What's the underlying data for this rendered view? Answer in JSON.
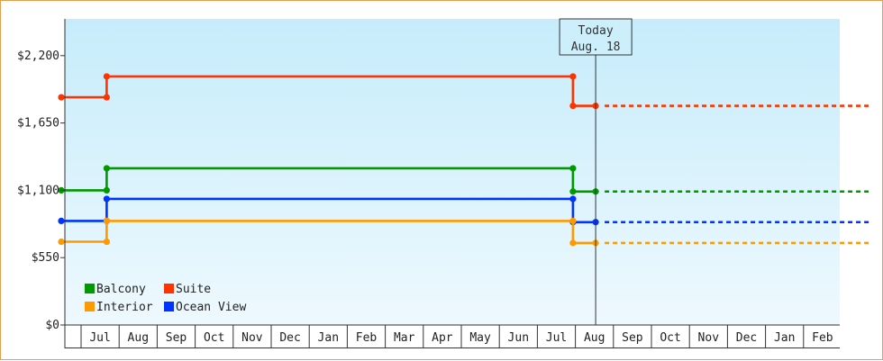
{
  "chart_data": {
    "type": "line",
    "step": true,
    "grid": false,
    "legend_placement": "bottom-left",
    "ylim": [
      0,
      2500
    ],
    "y_ticks": [
      {
        "value": 0,
        "label": "$0"
      },
      {
        "value": 550,
        "label": "$550"
      },
      {
        "value": 1100,
        "label": "$1,100"
      },
      {
        "value": 1650,
        "label": "$1,650"
      },
      {
        "value": 2200,
        "label": "$2,200"
      }
    ],
    "x_labels": [
      "Jul",
      "Aug",
      "Sep",
      "Oct",
      "Nov",
      "Dec",
      "Jan",
      "Feb",
      "Mar",
      "Apr",
      "May",
      "Jun",
      "Jul",
      "Aug",
      "Sep",
      "Oct",
      "Nov",
      "Dec",
      "Jan",
      "Feb"
    ],
    "today": {
      "line1": "Today",
      "line2": "Aug. 18",
      "x": 13.18
    },
    "forecast_end_x": 20.0,
    "series": [
      {
        "name": "Suite",
        "color": "#ff3300",
        "points": [
          [
            0,
            1860
          ],
          [
            1.12,
            1860
          ],
          [
            1.12,
            2030
          ],
          [
            12.62,
            2030
          ],
          [
            12.62,
            1790
          ],
          [
            13.18,
            1790
          ]
        ],
        "forecast": 1790
      },
      {
        "name": "Balcony",
        "color": "#009900",
        "points": [
          [
            0,
            1100
          ],
          [
            1.12,
            1100
          ],
          [
            1.12,
            1280
          ],
          [
            12.62,
            1280
          ],
          [
            12.62,
            1090
          ],
          [
            13.18,
            1090
          ]
        ],
        "forecast": 1090
      },
      {
        "name": "Ocean View",
        "color": "#0033ff",
        "points": [
          [
            0,
            850
          ],
          [
            1.12,
            850
          ],
          [
            1.12,
            1030
          ],
          [
            12.62,
            1030
          ],
          [
            12.62,
            840
          ],
          [
            13.18,
            840
          ]
        ],
        "forecast": 840
      },
      {
        "name": "Interior",
        "color": "#ff9900",
        "points": [
          [
            0,
            680
          ],
          [
            1.12,
            680
          ],
          [
            1.12,
            850
          ],
          [
            12.62,
            850
          ],
          [
            12.62,
            670
          ],
          [
            13.18,
            670
          ]
        ],
        "forecast": 670
      }
    ]
  },
  "legend": [
    {
      "name": "Balcony",
      "color": "#009900"
    },
    {
      "name": "Suite",
      "color": "#ff3300"
    },
    {
      "name": "Interior",
      "color": "#ff9900"
    },
    {
      "name": "Ocean View",
      "color": "#0033ff"
    }
  ]
}
